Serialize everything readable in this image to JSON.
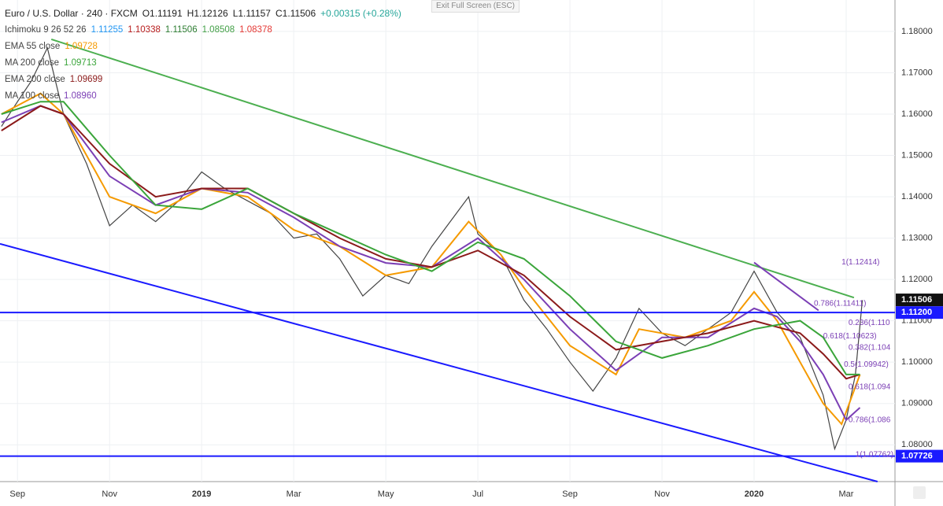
{
  "header": {
    "symbol": "Euro / U.S. Dollar · 240 · FXCM",
    "open": "O1.11191",
    "high": "H1.12126",
    "low": "L1.11157",
    "close": "C1.11506",
    "change": "+0.00315 (+0.28%)",
    "exit": "Exit Full Screen (ESC)"
  },
  "indicators": [
    {
      "name": "Ichimoku 9 26 52 26",
      "readings": [
        {
          "text": "1.11255",
          "color": "#2196f3"
        },
        {
          "text": "1.10338",
          "color": "#b71c1c"
        },
        {
          "text": "1.11506",
          "color": "#2e7d32"
        },
        {
          "text": "1.08508",
          "color": "#43a047"
        },
        {
          "text": "1.08378",
          "color": "#e53935"
        }
      ]
    },
    {
      "name": "EMA 55 close",
      "readings": [
        {
          "text": "1.09728",
          "color": "#f59a00"
        }
      ]
    },
    {
      "name": "MA 200 close",
      "readings": [
        {
          "text": "1.09713",
          "color": "#3aa53a"
        }
      ]
    },
    {
      "name": "EMA 200 close",
      "readings": [
        {
          "text": "1.09699",
          "color": "#8b1a1a"
        }
      ]
    },
    {
      "name": "MA 100 close",
      "readings": [
        {
          "text": "1.08960",
          "color": "#7b3fb5"
        }
      ]
    }
  ],
  "chart_data": {
    "type": "line",
    "xlim": [
      0.62,
      20.06
    ],
    "ylim": [
      1.0711,
      1.1876
    ],
    "xticks": [
      {
        "value": 1,
        "label": "Sep"
      },
      {
        "value": 3,
        "label": "Nov"
      },
      {
        "value": 5,
        "label": "2019"
      },
      {
        "value": 7,
        "label": "Mar"
      },
      {
        "value": 9,
        "label": "May"
      },
      {
        "value": 11,
        "label": "Jul"
      },
      {
        "value": 13,
        "label": "Sep"
      },
      {
        "value": 15,
        "label": "Nov"
      },
      {
        "value": 17,
        "label": "2020"
      },
      {
        "value": 19,
        "label": "Mar"
      }
    ],
    "yticks": [
      {
        "value": 1.08,
        "label": "1.08000"
      },
      {
        "value": 1.09,
        "label": "1.09000"
      },
      {
        "value": 1.1,
        "label": "1.10000"
      },
      {
        "value": 1.11,
        "label": "1.11000"
      },
      {
        "value": 1.12,
        "label": "1.12000"
      },
      {
        "value": 1.13,
        "label": "1.13000"
      },
      {
        "value": 1.14,
        "label": "1.14000"
      },
      {
        "value": 1.15,
        "label": "1.15000"
      },
      {
        "value": 1.16,
        "label": "1.16000"
      },
      {
        "value": 1.17,
        "label": "1.17000"
      },
      {
        "value": 1.18,
        "label": "1.18000"
      }
    ],
    "grid": true,
    "series": [
      {
        "color": "#444444",
        "x": [
          0.65,
          1.0,
          1.3,
          1.65,
          2.0,
          2.5,
          3.0,
          3.5,
          4.0,
          4.5,
          5.0,
          5.5,
          6.0,
          6.5,
          7.0,
          7.5,
          8.0,
          8.5,
          9.0,
          9.5,
          10.0,
          10.8,
          11.0,
          11.5,
          12.0,
          12.5,
          13.0,
          13.5,
          14.0,
          14.5,
          15.0,
          15.5,
          16.0,
          16.5,
          17.0,
          17.5,
          18.0,
          18.5,
          18.75,
          19.0,
          19.2,
          19.35
        ],
        "values": [
          1.157,
          1.163,
          1.168,
          1.176,
          1.16,
          1.148,
          1.133,
          1.138,
          1.134,
          1.139,
          1.146,
          1.142,
          1.139,
          1.136,
          1.13,
          1.131,
          1.125,
          1.116,
          1.121,
          1.119,
          1.128,
          1.14,
          1.131,
          1.126,
          1.115,
          1.108,
          1.1,
          1.093,
          1.101,
          1.113,
          1.107,
          1.104,
          1.108,
          1.112,
          1.122,
          1.112,
          1.106,
          1.092,
          1.079,
          1.086,
          1.097,
          1.115
        ]
      },
      {
        "color": "#f59a00",
        "x": [
          0.65,
          1.5,
          2.0,
          2.5,
          3.0,
          4.0,
          5.0,
          6.0,
          7.0,
          8.0,
          9.0,
          10.0,
          10.8,
          11.5,
          12.0,
          13.0,
          14.0,
          14.5,
          15.5,
          16.5,
          17.0,
          17.5,
          18.0,
          18.5,
          18.9,
          19.3
        ],
        "values": [
          1.16,
          1.165,
          1.16,
          1.15,
          1.14,
          1.136,
          1.142,
          1.14,
          1.132,
          1.128,
          1.121,
          1.123,
          1.134,
          1.126,
          1.118,
          1.104,
          1.097,
          1.108,
          1.106,
          1.11,
          1.117,
          1.11,
          1.1,
          1.09,
          1.085,
          1.097
        ]
      },
      {
        "color": "#7b3fb5",
        "x": [
          0.65,
          1.5,
          2.0,
          3.0,
          4.0,
          5.0,
          6.0,
          7.0,
          8.0,
          9.0,
          10.0,
          11.0,
          12.0,
          13.0,
          14.0,
          15.0,
          16.0,
          17.0,
          17.5,
          18.0,
          18.5,
          19.0,
          19.3
        ],
        "values": [
          1.158,
          1.162,
          1.16,
          1.145,
          1.138,
          1.142,
          1.141,
          1.135,
          1.128,
          1.124,
          1.123,
          1.13,
          1.12,
          1.108,
          1.098,
          1.106,
          1.106,
          1.113,
          1.111,
          1.105,
          1.097,
          1.086,
          1.089
        ]
      },
      {
        "color": "#8b1a1a",
        "x": [
          0.65,
          1.5,
          2.0,
          3.0,
          4.0,
          5.0,
          6.0,
          7.0,
          8.0,
          9.0,
          10.0,
          11.0,
          12.0,
          13.0,
          14.0,
          15.0,
          16.0,
          17.0,
          18.0,
          18.5,
          19.0,
          19.3
        ],
        "values": [
          1.156,
          1.162,
          1.16,
          1.148,
          1.14,
          1.142,
          1.142,
          1.136,
          1.13,
          1.125,
          1.123,
          1.127,
          1.121,
          1.111,
          1.103,
          1.105,
          1.107,
          1.11,
          1.107,
          1.102,
          1.096,
          1.097
        ]
      },
      {
        "color": "#3aa53a",
        "x": [
          0.65,
          1.5,
          2.0,
          3.0,
          4.0,
          5.0,
          6.0,
          7.0,
          8.0,
          9.0,
          10.0,
          11.0,
          12.0,
          13.0,
          14.0,
          15.0,
          16.0,
          17.0,
          18.0,
          18.5,
          19.0,
          19.3
        ],
        "values": [
          1.16,
          1.163,
          1.163,
          1.15,
          1.138,
          1.137,
          1.142,
          1.136,
          1.131,
          1.126,
          1.122,
          1.129,
          1.125,
          1.116,
          1.105,
          1.101,
          1.104,
          1.108,
          1.11,
          1.106,
          1.097,
          1.097
        ]
      },
      {
        "color": "#4caf50",
        "x": [
          1.735,
          19.17
        ],
        "values": [
          1.1781,
          1.1156
        ]
      },
      {
        "color": "#1a1aff",
        "x": [
          0.62,
          19.68
        ],
        "values": [
          1.1286,
          1.0711
        ]
      },
      {
        "color": "#7b3fb5",
        "x": [
          17.0,
          18.4
        ],
        "values": [
          1.1241,
          1.1125
        ]
      }
    ],
    "price_lines": [
      {
        "value": 1.112,
        "label": "1.11200",
        "color": "#1a1aff"
      },
      {
        "value": 1.07726,
        "label": "1.07726",
        "color": "#1a1aff"
      }
    ],
    "last_price": {
      "value": 1.11506,
      "label": "1.11506"
    },
    "annotations": [
      {
        "text": "1(1.12414)",
        "x": 18.9,
        "y": 1.12414
      },
      {
        "text": "0.786(1.11411)",
        "x": 18.3,
        "y": 1.11411
      },
      {
        "text": "0.236(1.110",
        "x": 19.05,
        "y": 1.1095
      },
      {
        "text": "0.618(1.10623)",
        "x": 18.5,
        "y": 1.10623
      },
      {
        "text": "0.382(1.104",
        "x": 19.05,
        "y": 1.1035
      },
      {
        "text": "0.5(1.09942)",
        "x": 18.95,
        "y": 1.09942
      },
      {
        "text": "0.618(1.094",
        "x": 19.05,
        "y": 1.094
      },
      {
        "text": "0.786(1.086",
        "x": 19.05,
        "y": 1.086
      },
      {
        "text": "1(1.07762)",
        "x": 19.2,
        "y": 1.07762
      }
    ]
  }
}
